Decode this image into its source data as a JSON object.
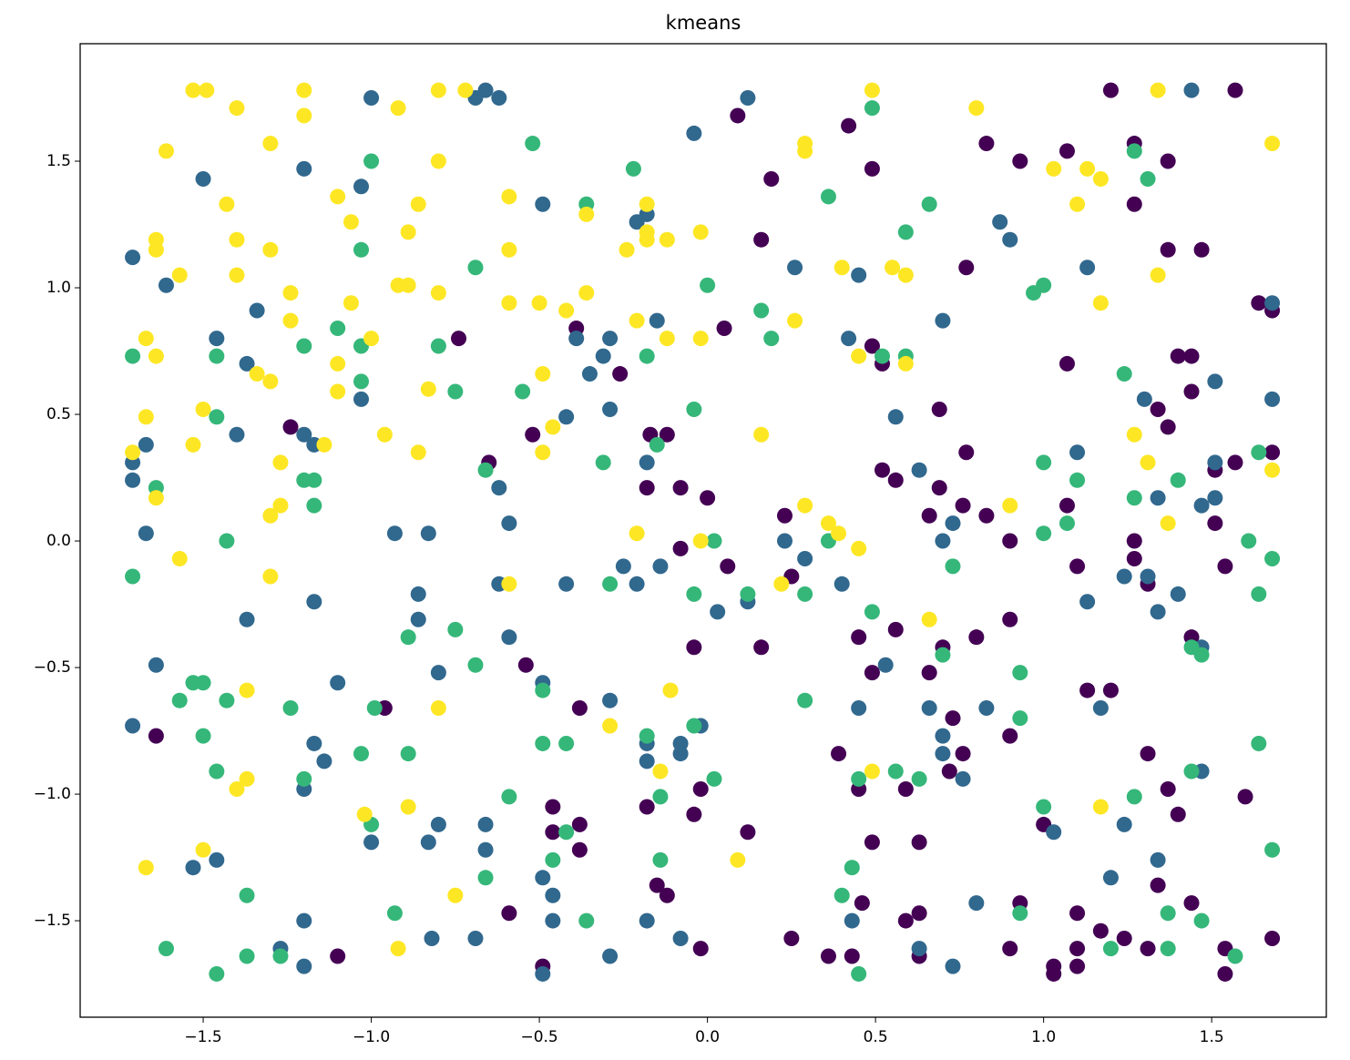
{
  "chart_data": {
    "type": "scatter",
    "title": "kmeans",
    "xlim": [
      -1.866,
      1.841
    ],
    "ylim": [
      -1.881,
      1.964
    ],
    "xticks": [
      {
        "value": -1.5,
        "label": "−1.5"
      },
      {
        "value": -1.0,
        "label": "−1.0"
      },
      {
        "value": -0.5,
        "label": "−0.5"
      },
      {
        "value": 0,
        "label": "0.0"
      },
      0.5,
      {
        "value": 1.0,
        "label": "1.0"
      },
      1.5
    ],
    "yticks": [
      {
        "value": -1.5,
        "label": "−1.5"
      },
      {
        "value": -1.0,
        "label": "−1.0"
      },
      {
        "value": -0.5,
        "label": "−0.5"
      },
      {
        "value": 0,
        "label": "0.0"
      },
      0.5,
      {
        "value": 1.0,
        "label": "1.0"
      },
      1.5
    ],
    "grid": false,
    "series": [
      {
        "color": "#440154",
        "x": [
          0.09,
          0.19,
          0.42,
          0.49,
          0.16,
          0.83,
          0.93,
          1.07,
          1.2,
          1.27,
          1.27,
          1.37,
          1.37,
          1.47,
          1.57,
          0.77,
          0.05,
          0.49,
          0.52,
          1.07,
          1.4,
          1.44,
          1.64,
          1.68,
          -0.74,
          -0.39,
          -0.26,
          -1.24,
          -0.65,
          -0.52,
          -0.17,
          -0.12,
          -0.18,
          -0.08,
          0.0,
          0.52,
          0.56,
          0.69,
          0.69,
          0.77,
          0.76,
          0.66,
          0.83,
          1.07,
          1.34,
          1.37,
          1.44,
          1.51,
          1.57,
          1.68,
          1.51,
          0.23,
          0.9,
          1.27,
          1.27,
          1.1,
          1.31,
          1.54,
          -0.08,
          0.06,
          0.25,
          -0.04,
          0.16,
          0.45,
          0.56,
          0.49,
          0.66,
          0.7,
          0.8,
          0.9,
          1.44,
          -0.54,
          -0.96,
          -0.38,
          1.13,
          1.2,
          0.73,
          0.76,
          0.72,
          0.39,
          0.9,
          1.31,
          0.45,
          0.59,
          -0.02,
          -0.04,
          -0.18,
          -0.46,
          -0.46,
          -0.38,
          -0.38,
          0.12,
          0.49,
          0.63,
          1.0,
          1.37,
          1.4,
          1.6,
          -0.15,
          -0.12,
          -0.59,
          -0.49,
          -1.64,
          -1.1,
          -0.02,
          0.25,
          0.36,
          0.43,
          0.46,
          0.59,
          0.63,
          0.63,
          0.93,
          0.9,
          1.03,
          1.03,
          1.1,
          1.1,
          1.1,
          1.17,
          1.24,
          1.31,
          1.34,
          1.44,
          1.54,
          1.54,
          1.68
        ],
        "y": [
          1.68,
          1.43,
          1.64,
          1.47,
          1.19,
          1.57,
          1.5,
          1.54,
          1.78,
          1.57,
          1.33,
          1.5,
          1.15,
          1.15,
          1.78,
          1.08,
          0.84,
          0.77,
          0.7,
          0.7,
          0.73,
          0.73,
          0.94,
          0.91,
          0.8,
          0.84,
          0.66,
          0.45,
          0.31,
          0.42,
          0.42,
          0.42,
          0.21,
          0.21,
          0.17,
          0.28,
          0.24,
          0.52,
          0.21,
          0.35,
          0.14,
          0.1,
          0.1,
          0.14,
          0.52,
          0.45,
          0.59,
          0.28,
          0.31,
          0.35,
          0.07,
          0.1,
          0.0,
          0.0,
          -0.07,
          -0.1,
          -0.17,
          -0.1,
          -0.03,
          -0.1,
          -0.14,
          -0.42,
          -0.42,
          -0.38,
          -0.35,
          -0.52,
          -0.52,
          -0.42,
          -0.38,
          -0.31,
          -0.38,
          -0.49,
          -0.66,
          -0.66,
          -0.59,
          -0.59,
          -0.7,
          -0.84,
          -0.91,
          -0.84,
          -0.77,
          -0.84,
          -0.98,
          -0.98,
          -0.98,
          -1.08,
          -1.05,
          -1.05,
          -1.15,
          -1.12,
          -1.22,
          -1.15,
          -1.19,
          -1.19,
          -1.12,
          -0.98,
          -1.08,
          -1.01,
          -1.36,
          -1.4,
          -1.47,
          -1.68,
          -0.77,
          -1.64,
          -1.61,
          -1.57,
          -1.64,
          -1.64,
          -1.43,
          -1.5,
          -1.47,
          -1.64,
          -1.43,
          -1.61,
          -1.68,
          -1.71,
          -1.47,
          -1.61,
          -1.68,
          -1.54,
          -1.57,
          -1.61,
          -1.36,
          -1.43,
          -1.61,
          -1.71,
          -1.57
        ]
      },
      {
        "color": "#31688e",
        "x": [
          -1.0,
          -0.69,
          -0.66,
          -0.62,
          0.12,
          -0.04,
          1.44,
          -1.5,
          -1.2,
          -1.03,
          -0.49,
          -0.21,
          -0.18,
          0.26,
          0.45,
          0.87,
          0.9,
          1.13,
          -1.71,
          -1.61,
          -1.34,
          -1.46,
          -1.37,
          -1.03,
          -0.39,
          -0.31,
          -0.35,
          -0.29,
          -0.15,
          0.42,
          0.7,
          1.68,
          -1.2,
          -1.17,
          -1.4,
          -1.67,
          -1.71,
          -1.71,
          -1.67,
          -0.42,
          -0.29,
          -0.18,
          -0.62,
          -0.59,
          -0.93,
          -0.83,
          0.56,
          0.63,
          0.73,
          0.7,
          1.1,
          1.3,
          1.51,
          1.51,
          1.51,
          1.68,
          1.34,
          1.47,
          0.23,
          0.29,
          -0.42,
          -0.62,
          -0.21,
          -0.14,
          -0.25,
          0.03,
          0.12,
          0.4,
          1.24,
          1.31,
          1.4,
          1.34,
          1.13,
          -1.37,
          -1.17,
          -0.86,
          -0.86,
          -0.59,
          -1.64,
          -1.1,
          -0.8,
          -0.49,
          -0.29,
          -1.71,
          -1.17,
          -1.14,
          -0.18,
          -0.18,
          -0.08,
          -0.08,
          -0.02,
          0.53,
          0.45,
          0.66,
          0.7,
          0.7,
          0.76,
          0.83,
          1.17,
          1.47,
          1.47,
          -1.2,
          -1.0,
          -0.8,
          -0.83,
          -0.66,
          -0.66,
          -0.49,
          -0.46,
          -1.46,
          -1.53,
          -1.2,
          -1.27,
          -1.2,
          -0.82,
          -0.69,
          -0.46,
          -0.49,
          -0.18,
          -0.08,
          -0.29,
          0.43,
          0.63,
          0.73,
          0.8,
          1.03,
          1.2,
          1.24,
          1.34
        ],
        "y": [
          1.75,
          1.75,
          1.78,
          1.75,
          1.75,
          1.61,
          1.78,
          1.43,
          1.47,
          1.4,
          1.33,
          1.26,
          1.29,
          1.08,
          1.05,
          1.26,
          1.19,
          1.08,
          1.12,
          1.01,
          0.91,
          0.8,
          0.7,
          0.56,
          0.8,
          0.73,
          0.66,
          0.8,
          0.87,
          0.8,
          0.87,
          0.94,
          0.42,
          0.38,
          0.42,
          0.38,
          0.31,
          0.24,
          0.03,
          0.49,
          0.52,
          0.31,
          0.21,
          0.07,
          0.03,
          0.03,
          0.49,
          0.28,
          0.07,
          0.0,
          0.35,
          0.56,
          0.63,
          0.31,
          0.17,
          0.56,
          0.17,
          0.14,
          0.0,
          -0.07,
          -0.17,
          -0.17,
          -0.17,
          -0.1,
          -0.1,
          -0.28,
          -0.24,
          -0.17,
          -0.14,
          -0.14,
          -0.21,
          -0.28,
          -0.24,
          -0.31,
          -0.24,
          -0.21,
          -0.31,
          -0.38,
          -0.49,
          -0.56,
          -0.52,
          -0.56,
          -0.63,
          -0.73,
          -0.8,
          -0.87,
          -0.8,
          -0.87,
          -0.8,
          -0.84,
          -0.73,
          -0.49,
          -0.66,
          -0.66,
          -0.77,
          -0.84,
          -0.94,
          -0.66,
          -0.66,
          -0.42,
          -0.91,
          -0.98,
          -1.19,
          -1.12,
          -1.19,
          -1.12,
          -1.22,
          -1.33,
          -1.4,
          -1.26,
          -1.29,
          -1.5,
          -1.61,
          -1.68,
          -1.57,
          -1.57,
          -1.5,
          -1.71,
          -1.5,
          -1.57,
          -1.64,
          -1.5,
          -1.61,
          -1.68,
          -1.43,
          -1.15,
          -1.33,
          -1.12,
          -1.26
        ]
      },
      {
        "color": "#35b779",
        "x": [
          -0.52,
          -0.22,
          -1.0,
          -0.36,
          0.36,
          0.66,
          0.49,
          1.27,
          1.31,
          0.59,
          -1.03,
          -0.69,
          0.0,
          0.97,
          1.0,
          -1.71,
          -1.46,
          -1.1,
          -1.03,
          -1.03,
          -1.2,
          -0.8,
          -0.75,
          -0.55,
          -0.18,
          0.16,
          0.19,
          0.52,
          0.59,
          1.24,
          -1.46,
          -1.64,
          -1.2,
          -1.17,
          -1.17,
          -0.66,
          -0.31,
          -0.15,
          -0.04,
          1.0,
          1.1,
          1.27,
          1.4,
          1.64,
          -1.43,
          0.36,
          1.0,
          1.07,
          1.61,
          1.68,
          0.02,
          -1.71,
          -0.29,
          -0.04,
          0.12,
          0.29,
          0.73,
          1.64,
          0.49,
          -0.89,
          -0.75,
          -0.69,
          -1.53,
          -1.5,
          -1.57,
          -1.43,
          -1.24,
          -0.99,
          -0.49,
          0.29,
          0.7,
          0.93,
          0.93,
          1.44,
          1.47,
          -1.5,
          -1.46,
          -1.03,
          -0.89,
          -0.49,
          -0.42,
          -0.18,
          -0.04,
          0.02,
          -0.14,
          0.45,
          0.56,
          0.63,
          1.44,
          1.64,
          -1.2,
          -0.59,
          -1.0,
          -0.42,
          -0.46,
          -0.14,
          -0.66,
          0.43,
          0.4,
          1.0,
          1.27,
          1.68,
          -1.37,
          -0.93,
          -0.36,
          0.93,
          1.37,
          1.47,
          1.37,
          1.2,
          1.57,
          -1.61,
          -1.37,
          -1.27,
          -1.46,
          0.45
        ],
        "y": [
          1.57,
          1.47,
          1.5,
          1.33,
          1.36,
          1.33,
          1.71,
          1.54,
          1.43,
          1.22,
          1.15,
          1.08,
          1.01,
          0.98,
          1.01,
          0.73,
          0.73,
          0.84,
          0.77,
          0.63,
          0.77,
          0.77,
          0.59,
          0.59,
          0.73,
          0.91,
          0.8,
          0.73,
          0.73,
          0.66,
          0.49,
          0.21,
          0.24,
          0.24,
          0.14,
          0.28,
          0.31,
          0.38,
          0.52,
          0.31,
          0.24,
          0.17,
          0.24,
          0.35,
          0.0,
          0.0,
          0.03,
          0.07,
          0.0,
          -0.07,
          0.0,
          -0.14,
          -0.17,
          -0.21,
          -0.21,
          -0.21,
          -0.1,
          -0.21,
          -0.28,
          -0.38,
          -0.35,
          -0.49,
          -0.56,
          -0.56,
          -0.63,
          -0.63,
          -0.66,
          -0.66,
          -0.59,
          -0.63,
          -0.45,
          -0.52,
          -0.7,
          -0.42,
          -0.45,
          -0.77,
          -0.91,
          -0.84,
          -0.84,
          -0.8,
          -0.8,
          -0.77,
          -0.73,
          -0.94,
          -1.01,
          -0.94,
          -0.91,
          -0.94,
          -0.91,
          -0.8,
          -0.94,
          -1.01,
          -1.12,
          -1.15,
          -1.26,
          -1.26,
          -1.33,
          -1.29,
          -1.4,
          -1.05,
          -1.01,
          -1.22,
          -1.4,
          -1.47,
          -1.5,
          -1.47,
          -1.47,
          -1.5,
          -1.61,
          -1.61,
          -1.64,
          -1.61,
          -1.64,
          -1.64,
          -1.71,
          -1.71
        ]
      },
      {
        "color": "#fde725",
        "x": [
          -1.53,
          -1.49,
          -1.4,
          -1.2,
          -1.2,
          -1.61,
          -1.3,
          -1.43,
          -1.4,
          -1.3,
          -1.64,
          -1.64,
          -1.57,
          -1.4,
          -1.24,
          -1.24,
          -1.67,
          -1.64,
          -1.34,
          -1.3,
          -1.1,
          -1.06,
          -1.06,
          -1.1,
          -1.1,
          -1.0,
          -0.92,
          -0.92,
          -0.89,
          -0.89,
          -0.86,
          -0.8,
          -0.72,
          -0.8,
          -0.8,
          -0.83,
          -1.67,
          -1.5,
          -1.53,
          -1.71,
          -1.64,
          -1.27,
          -1.27,
          -1.3,
          -1.14,
          -0.96,
          -0.86,
          -1.57,
          -1.3,
          -1.37,
          -1.4,
          -1.37,
          -1.67,
          -1.5,
          -1.02,
          -0.89,
          -0.92,
          -0.75,
          -0.8,
          -0.59,
          -0.59,
          -0.59,
          -0.5,
          -0.36,
          -0.42,
          -0.36,
          -0.49,
          -0.46,
          -0.49,
          -0.24,
          -0.18,
          -0.18,
          -0.18,
          -0.12,
          -0.21,
          -0.12,
          -0.02,
          -0.02,
          -0.59,
          -0.21,
          -0.02,
          -0.29,
          -0.14,
          -0.11,
          0.09,
          0.16,
          0.22,
          0.26,
          0.29,
          0.29,
          0.29,
          0.36,
          0.39,
          0.4,
          0.45,
          0.45,
          0.49,
          0.49,
          0.55,
          0.59,
          0.59,
          0.66,
          0.8,
          0.9,
          1.03,
          1.1,
          1.13,
          1.17,
          1.17,
          1.17,
          1.27,
          1.31,
          1.34,
          1.34,
          1.37,
          1.68,
          1.68
        ],
        "y": [
          1.78,
          1.78,
          1.71,
          1.78,
          1.68,
          1.54,
          1.57,
          1.33,
          1.19,
          1.15,
          1.19,
          1.15,
          1.05,
          1.05,
          0.98,
          0.87,
          0.8,
          0.73,
          0.66,
          0.63,
          1.36,
          1.26,
          0.94,
          0.7,
          0.59,
          0.8,
          1.71,
          1.01,
          1.01,
          1.22,
          1.33,
          1.78,
          1.78,
          1.5,
          0.98,
          0.6,
          0.49,
          0.52,
          0.38,
          0.35,
          0.17,
          0.31,
          0.14,
          0.1,
          0.38,
          0.42,
          0.35,
          -0.07,
          -0.14,
          -0.59,
          -0.98,
          -0.94,
          -1.29,
          -1.22,
          -1.08,
          -1.05,
          -1.61,
          -1.4,
          -0.66,
          1.36,
          1.15,
          0.94,
          0.94,
          1.29,
          0.91,
          0.98,
          0.66,
          0.45,
          0.35,
          1.15,
          1.33,
          1.19,
          1.22,
          1.19,
          0.87,
          0.8,
          1.22,
          0.8,
          -0.17,
          0.03,
          0.0,
          -0.73,
          -0.91,
          -0.59,
          -1.26,
          0.42,
          -0.17,
          0.87,
          1.57,
          1.54,
          0.14,
          0.07,
          0.03,
          1.08,
          0.73,
          -0.03,
          1.78,
          -0.91,
          1.08,
          1.05,
          0.7,
          -0.31,
          1.71,
          0.14,
          1.47,
          1.33,
          1.47,
          1.43,
          0.94,
          -1.05,
          0.42,
          0.31,
          1.78,
          1.05,
          0.07,
          1.57,
          0.28
        ]
      }
    ]
  }
}
